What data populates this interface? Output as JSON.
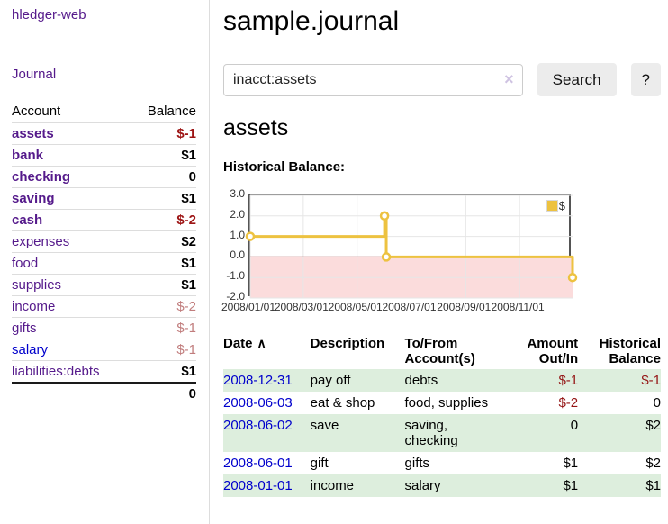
{
  "app": {
    "brand": "hledger-web"
  },
  "sidebar": {
    "journal_link": "Journal",
    "accounts": {
      "header_account": "Account",
      "header_balance": "Balance",
      "rows": [
        {
          "name": "assets",
          "balance": "$-1"
        },
        {
          "name": "bank",
          "balance": "$1"
        },
        {
          "name": "checking",
          "balance": "0"
        },
        {
          "name": "saving",
          "balance": "$1"
        },
        {
          "name": "cash",
          "balance": "$-2"
        },
        {
          "name": "expenses",
          "balance": "$2"
        },
        {
          "name": "food",
          "balance": "$1"
        },
        {
          "name": "supplies",
          "balance": "$1"
        },
        {
          "name": "income",
          "balance": "$-2"
        },
        {
          "name": "gifts",
          "balance": "$-1"
        },
        {
          "name": "salary",
          "balance": "$-1"
        },
        {
          "name": "liabilities:debts",
          "balance": "$1"
        }
      ],
      "total": "0"
    }
  },
  "main": {
    "title": "sample.journal",
    "search": {
      "value": "inacct:assets",
      "clear": "×",
      "search_button": "Search",
      "help_button": "?"
    },
    "account_heading": "assets",
    "chart_title": "Historical Balance:",
    "register": {
      "headers": {
        "date": "Date",
        "sort": "∧",
        "description": "Description",
        "accounts": "To/From Account(s)",
        "amount": "Amount Out/In",
        "balance": "Historical Balance"
      },
      "rows": [
        {
          "date": "2008-12-31",
          "description": "pay off",
          "accounts": "debts",
          "amount": "$-1",
          "balance": "$-1"
        },
        {
          "date": "2008-06-03",
          "description": "eat & shop",
          "accounts": "food, supplies",
          "amount": "$-2",
          "balance": "0"
        },
        {
          "date": "2008-06-02",
          "description": "save",
          "accounts": "saving,\nchecking",
          "amount": "0",
          "balance": "$2"
        },
        {
          "date": "2008-06-01",
          "description": "gift",
          "accounts": "gifts",
          "amount": "$1",
          "balance": "$2"
        },
        {
          "date": "2008-01-01",
          "description": "income",
          "accounts": "salary",
          "amount": "$1",
          "balance": "$1"
        }
      ]
    }
  },
  "chart_data": {
    "type": "line",
    "title": "Historical Balance",
    "series": [
      {
        "name": "$",
        "color": "#edc240",
        "step": true,
        "points": [
          [
            "2008-01-01",
            1
          ],
          [
            "2008-06-01",
            1
          ],
          [
            "2008-06-01",
            2
          ],
          [
            "2008-06-03",
            2
          ],
          [
            "2008-06-03",
            0
          ],
          [
            "2008-12-31",
            0
          ],
          [
            "2008-12-31",
            -1
          ]
        ],
        "markers": [
          [
            "2008-01-01",
            1
          ],
          [
            "2008-06-01",
            2
          ],
          [
            "2008-06-03",
            0
          ],
          [
            "2008-12-31",
            -1
          ]
        ]
      }
    ],
    "xrange": [
      "2008-01-01",
      "2008-12-31"
    ],
    "ylim": [
      -2,
      3
    ],
    "ytick_labels": [
      "3.0",
      "2.0",
      "1.0",
      "0.0",
      "-1.0",
      "-2.0"
    ],
    "xtick_labels": [
      "2008/01/01",
      "2008/03/01",
      "2008/05/01",
      "2008/07/01",
      "2008/09/01",
      "2008/11/01"
    ],
    "legend": {
      "label": "$",
      "position": "top-right"
    },
    "grid": true,
    "negative_region_color": "#fbdcdc",
    "zero_line_color": "#8b0000",
    "grid_color": "#e6e6e6"
  },
  "colors": {
    "link_visited": "#551a8b",
    "link_blue": "#0000cc",
    "negative_strong": "#9d1414",
    "negative_muted": "#c17d7d",
    "row_stripe_green": "#ddeedd",
    "series_yellow": "#edc240",
    "button_bg": "#ececec"
  }
}
